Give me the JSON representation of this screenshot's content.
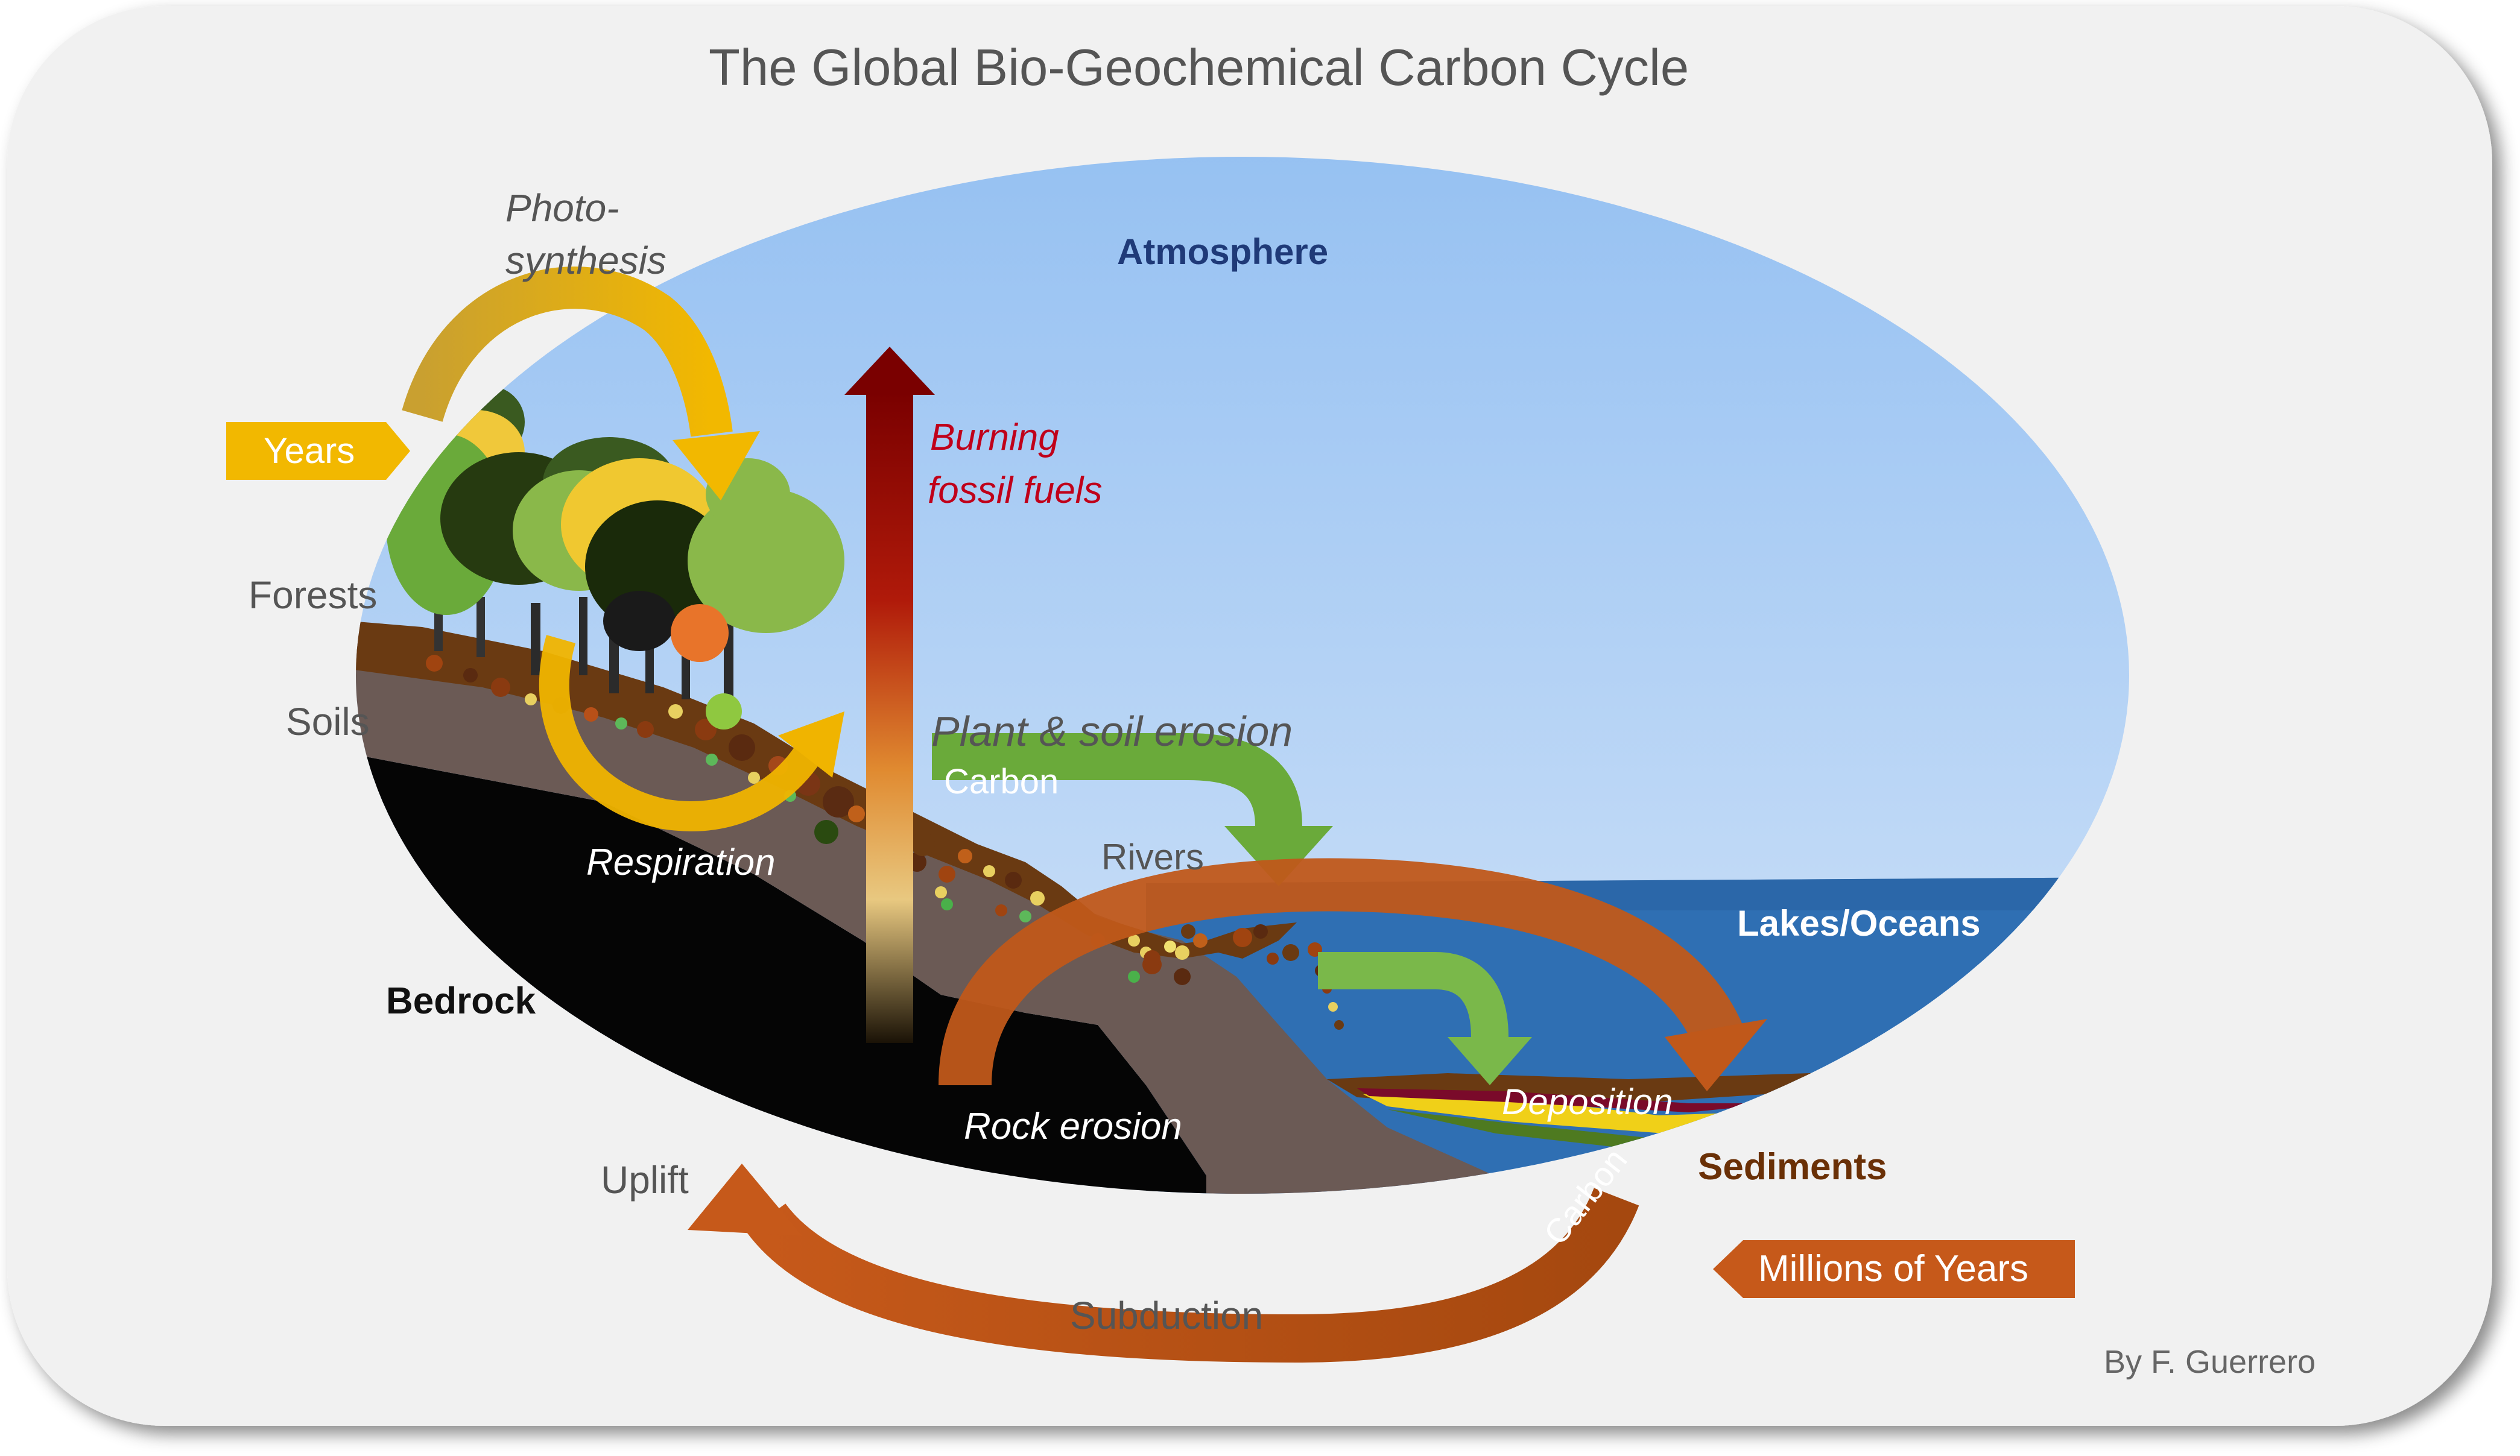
{
  "title": "The Global Bio-Geochemical Carbon Cycle",
  "zones": {
    "atmosphere": "Atmosphere",
    "lakes_oceans": "Lakes/Oceans",
    "bedrock": "Bedrock",
    "sediments": "Sediments",
    "forests": "Forests",
    "soils": "Soils"
  },
  "processes": {
    "photosynthesis_line1": "Photo-",
    "photosynthesis_line2": "synthesis",
    "respiration": "Respiration",
    "burning_line1": "Burning",
    "burning_line2": "fossil fuels",
    "plant_soil_erosion": "Plant & soil erosion",
    "erosion_carbon": "Carbon",
    "rivers": "Rivers",
    "rock_erosion": "Rock erosion",
    "deposition": "Deposition",
    "uplift": "Uplift",
    "subduction": "Subduction",
    "subduction_carbon": "Carbon"
  },
  "timescales": {
    "years": "Years",
    "millions_of_years": "Millions of Years"
  },
  "credit": "By F. Guerrero",
  "colors": {
    "sky_top": "#9fc4f2",
    "sky_bottom": "#cfe1f7",
    "ocean": "#2f6fb3",
    "bedrock": "#050505",
    "soil": "#6b5a55",
    "topsoil": "#6a3a12",
    "green_arrow": "#6aaa3a",
    "yellow_arrow": "#f0b400",
    "brown_arrow": "#c0581a",
    "dark_red": "#8b0000",
    "atmosphere_text": "#1f3a78",
    "burning_text": "#c0001a",
    "sediments_text": "#6a3006"
  }
}
